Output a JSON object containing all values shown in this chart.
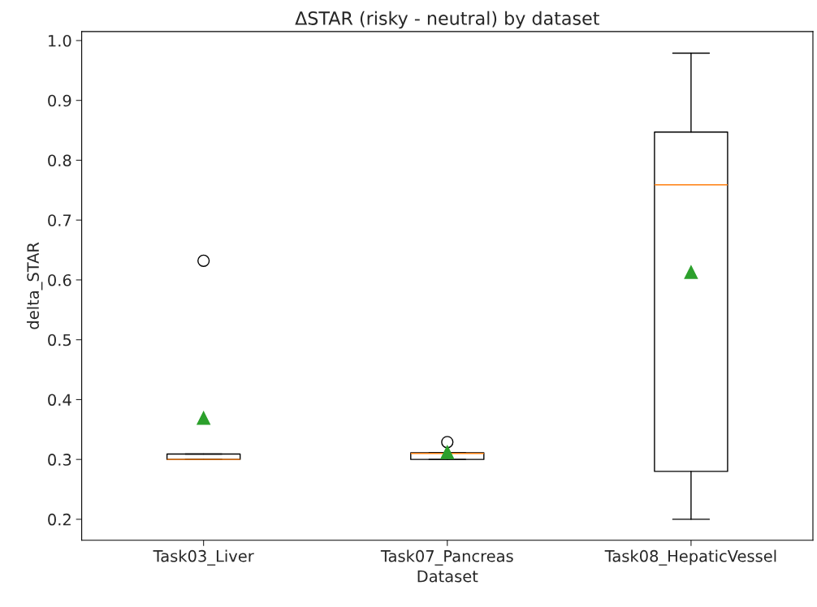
{
  "chart_data": {
    "type": "box",
    "title": "ΔSTAR (risky - neutral) by dataset",
    "xlabel": "Dataset",
    "ylabel": "delta_STAR",
    "categories": [
      "Task03_Liver",
      "Task07_Pancreas",
      "Task08_HepaticVessel"
    ],
    "boxes": [
      {
        "low": 0.3,
        "q1": 0.3,
        "median": 0.3,
        "q3": 0.309,
        "high": 0.309,
        "mean": 0.369,
        "outliers": [
          0.632
        ]
      },
      {
        "low": 0.3,
        "q1": 0.3,
        "median": 0.31,
        "q3": 0.311,
        "high": 0.311,
        "mean": 0.312,
        "outliers": [
          0.329
        ]
      },
      {
        "low": 0.2,
        "q1": 0.28,
        "median": 0.759,
        "q3": 0.847,
        "high": 0.979,
        "mean": 0.613
      }
    ],
    "ylim": [
      0.165,
      1.015
    ],
    "yticks": [
      0.2,
      0.3,
      0.4,
      0.5,
      0.6,
      0.7,
      0.8,
      0.9,
      {
        "value": 1,
        "label": "1.0"
      }
    ],
    "grid": false
  }
}
